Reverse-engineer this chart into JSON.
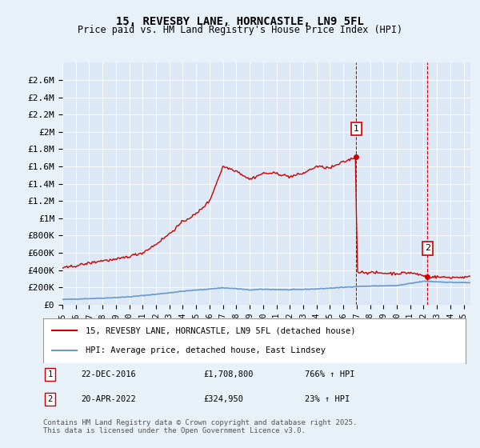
{
  "title": "15, REVESBY LANE, HORNCASTLE, LN9 5FL",
  "subtitle": "Price paid vs. HM Land Registry's House Price Index (HPI)",
  "background_color": "#e8f0f8",
  "plot_bg_color": "#dce8f5",
  "ylim": [
    0,
    2800000
  ],
  "yticks": [
    0,
    200000,
    400000,
    600000,
    800000,
    1000000,
    1200000,
    1400000,
    1600000,
    1800000,
    2000000,
    2200000,
    2400000,
    2600000
  ],
  "ytick_labels": [
    "£0",
    "£200K",
    "£400K",
    "£600K",
    "£800K",
    "£1M",
    "£1.2M",
    "£1.4M",
    "£1.6M",
    "£1.8M",
    "£2M",
    "£2.2M",
    "£2.4M",
    "£2.6M"
  ],
  "xlim_start": 1995.0,
  "xlim_end": 2025.5,
  "xtick_years": [
    1995,
    1996,
    1997,
    1998,
    1999,
    2000,
    2001,
    2002,
    2003,
    2004,
    2005,
    2006,
    2007,
    2008,
    2009,
    2010,
    2011,
    2012,
    2013,
    2014,
    2015,
    2016,
    2017,
    2018,
    2019,
    2020,
    2021,
    2022,
    2023,
    2024,
    2025
  ],
  "sale1_x": 2016.97,
  "sale1_y": 1708800,
  "sale1_label": "1",
  "sale1_date": "22-DEC-2016",
  "sale1_price": "£1,708,800",
  "sale1_hpi": "766% ↑ HPI",
  "sale2_x": 2022.3,
  "sale2_y": 324950,
  "sale2_label": "2",
  "sale2_date": "20-APR-2022",
  "sale2_price": "£324,950",
  "sale2_hpi": "23% ↑ HPI",
  "legend_line1": "15, REVESBY LANE, HORNCASTLE, LN9 5FL (detached house)",
  "legend_line2": "HPI: Average price, detached house, East Lindsey",
  "footer": "Contains HM Land Registry data © Crown copyright and database right 2025.\nThis data is licensed under the Open Government Licence v3.0.",
  "line_color_property": "#cc0000",
  "line_color_hpi": "#6699cc",
  "vline_color": "#cc0000"
}
